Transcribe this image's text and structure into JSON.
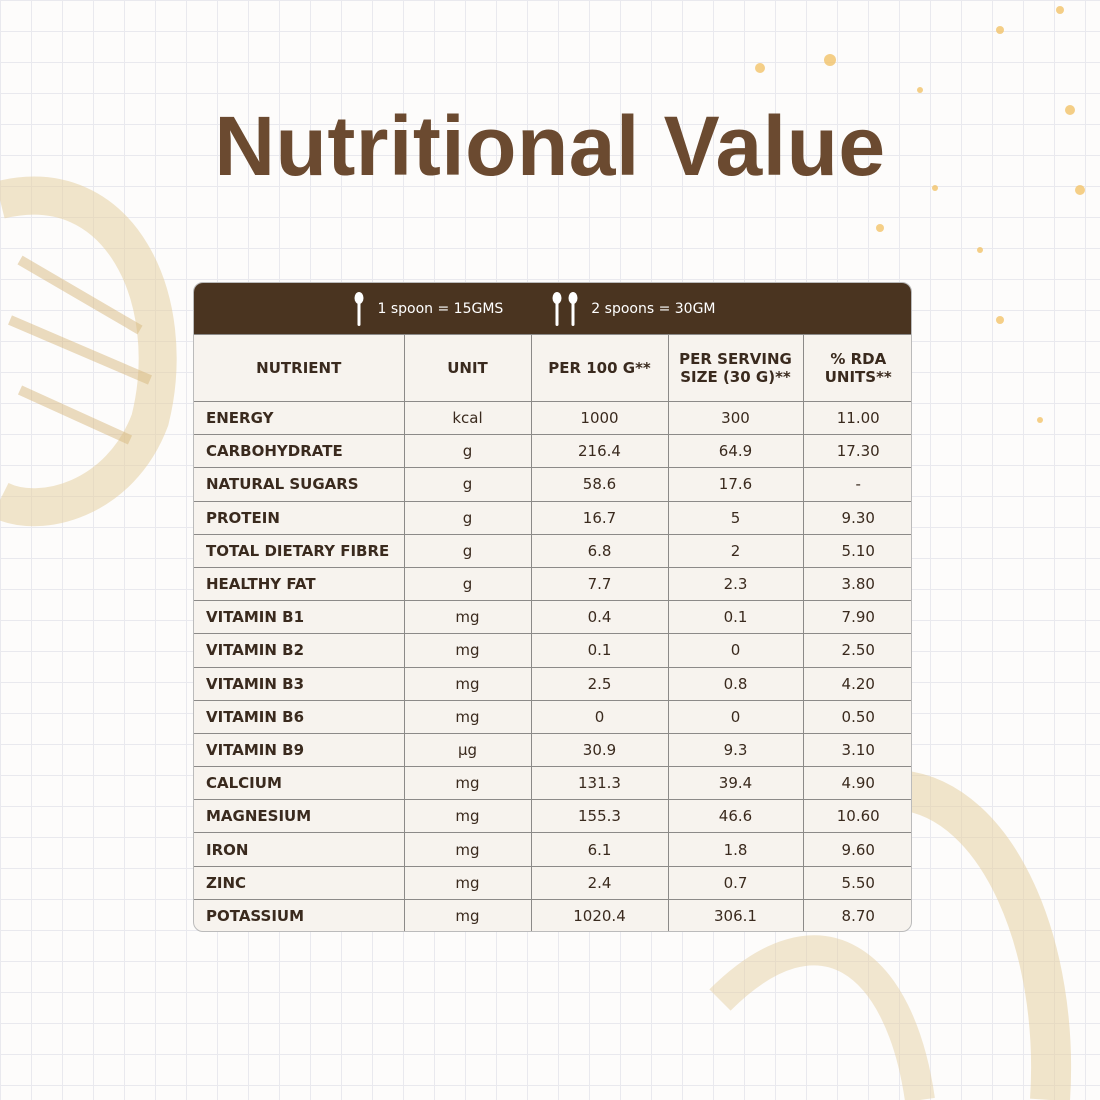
{
  "header": {
    "title": "Nutritional Value"
  },
  "serving": {
    "one": "1 spoon = 15GMS",
    "two": "2 spoons = 30GM"
  },
  "table": {
    "columns": [
      "NUTRIENT",
      "UNIT",
      "PER 100 G**",
      "PER SERVING SIZE (30 G)**",
      "% RDA UNITS**"
    ],
    "rows": [
      [
        "ENERGY",
        "kcal",
        "1000",
        "300",
        "11.00"
      ],
      [
        "CARBOHYDRATE",
        "g",
        "216.4",
        "64.9",
        "17.30"
      ],
      [
        "NATURAL SUGARS",
        "g",
        "58.6",
        "17.6",
        "-"
      ],
      [
        "PROTEIN",
        "g",
        "16.7",
        "5",
        "9.30"
      ],
      [
        "TOTAL DIETARY FIBRE",
        "g",
        "6.8",
        "2",
        "5.10"
      ],
      [
        "HEALTHY FAT",
        "g",
        "7.7",
        "2.3",
        "3.80"
      ],
      [
        "VITAMIN B1",
        "mg",
        "0.4",
        "0.1",
        "7.90"
      ],
      [
        "VITAMIN B2",
        "mg",
        "0.1",
        "0",
        "2.50"
      ],
      [
        "VITAMIN B3",
        "mg",
        "2.5",
        "0.8",
        "4.20"
      ],
      [
        "VITAMIN B6",
        "mg",
        "0",
        "0",
        "0.50"
      ],
      [
        "VITAMIN B9",
        "µg",
        "30.9",
        "9.3",
        "3.10"
      ],
      [
        "CALCIUM",
        "mg",
        "131.3",
        "39.4",
        "4.90"
      ],
      [
        "MAGNESIUM",
        "mg",
        "155.3",
        "46.6",
        "10.60"
      ],
      [
        "IRON",
        "mg",
        "6.1",
        "1.8",
        "9.60"
      ],
      [
        "ZINC",
        "mg",
        "2.4",
        "0.7",
        "5.50"
      ],
      [
        "POTASSIUM",
        "mg",
        "1020.4",
        "306.1",
        "8.70"
      ]
    ]
  }
}
